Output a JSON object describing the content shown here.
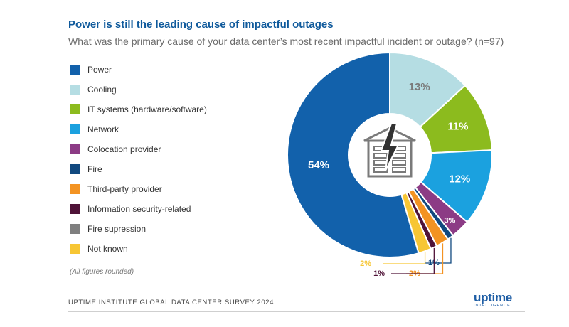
{
  "header": {
    "title": "Power is still the leading cause of impactful outages",
    "subtitle": "What was the primary cause of your data center’s most recent impactful incident or outage? (n=97)"
  },
  "note": "(All figures rounded)",
  "footer": {
    "source": "UPTIME INSTITUTE GLOBAL DATA CENTER SURVEY 2024",
    "logo_main": "uptime",
    "logo_sub": "INTELLIGENCE"
  },
  "chart_data": {
    "type": "pie",
    "variant": "donut",
    "title": "Power is still the leading cause of impactful outages",
    "subtitle": "What was the primary cause of your data center’s most recent impactful incident or outage? (n=97)",
    "legend_position": "left",
    "center_icon": "data-center-power-icon",
    "slices": [
      {
        "name": "Power",
        "value": 54,
        "label": "54%",
        "color": "#1261ab"
      },
      {
        "name": "Cooling",
        "value": 13,
        "label": "13%",
        "color": "#b5dde3"
      },
      {
        "name": "IT systems (hardware/software)",
        "value": 11,
        "label": "11%",
        "color": "#8cbb1e"
      },
      {
        "name": "Network",
        "value": 12,
        "label": "12%",
        "color": "#1ba1df"
      },
      {
        "name": "Colocation provider",
        "value": 3,
        "label": "3%",
        "color": "#8c3b85"
      },
      {
        "name": "Fire",
        "value": 1,
        "label": "1%",
        "color": "#11497f"
      },
      {
        "name": "Third-party provider",
        "value": 2,
        "label": "2%",
        "color": "#f39322"
      },
      {
        "name": "Information security-related",
        "value": 1,
        "label": "1%",
        "color": "#4f1338"
      },
      {
        "name": "Fire supression",
        "value": 0,
        "label": "",
        "color": "#7f7f7f"
      },
      {
        "name": "Not known",
        "value": 2,
        "label": "2%",
        "color": "#f7c634"
      }
    ]
  }
}
